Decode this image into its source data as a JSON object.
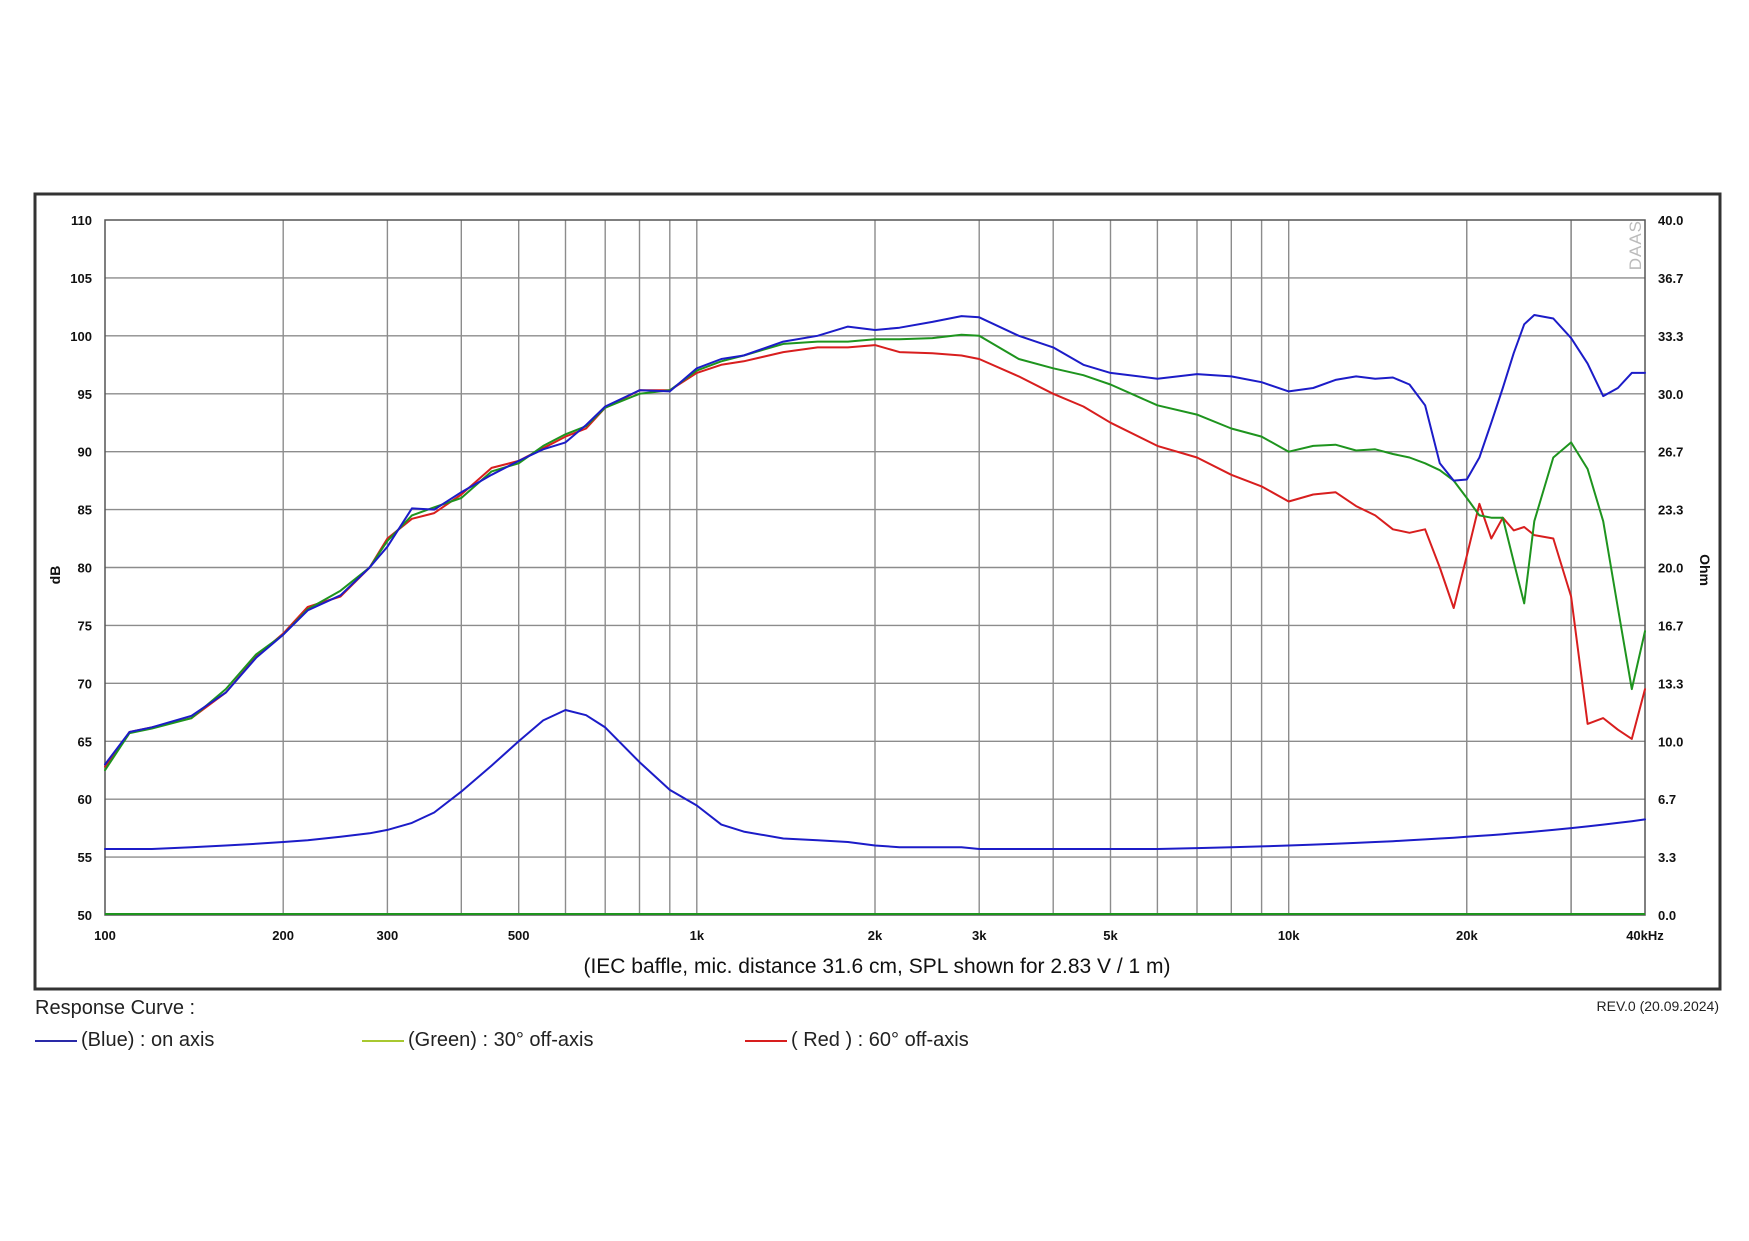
{
  "chart_data": {
    "type": "line",
    "caption": "(IEC baffle, mic. distance 31.6 cm, SPL shown for 2.83 V / 1 m)",
    "xlabel": "",
    "ylabel": "dB",
    "y2label": "Ohm",
    "watermark": "DAAS",
    "xscale": "log",
    "xlim": [
      100,
      40000
    ],
    "ylim": [
      50,
      110
    ],
    "y2lim": [
      0.0,
      40.0
    ],
    "grid": true,
    "x_ticks": [
      {
        "value": 100,
        "label": "100"
      },
      {
        "value": 200,
        "label": "200"
      },
      {
        "value": 300,
        "label": "300"
      },
      {
        "value": 500,
        "label": "500"
      },
      {
        "value": 1000,
        "label": "1k"
      },
      {
        "value": 2000,
        "label": "2k"
      },
      {
        "value": 3000,
        "label": "3k"
      },
      {
        "value": 5000,
        "label": "5k"
      },
      {
        "value": 10000,
        "label": "10k"
      },
      {
        "value": 20000,
        "label": "20k"
      },
      {
        "value": 40000,
        "label": "40kHz"
      }
    ],
    "y_ticks": [
      "110",
      "105",
      "100",
      "95",
      "90",
      "85",
      "80",
      "75",
      "70",
      "65",
      "60",
      "55",
      "50"
    ],
    "y2_ticks": [
      "40.0",
      "36.7",
      "33.3",
      "30.0",
      "26.7",
      "23.3",
      "20.0",
      "16.7",
      "13.3",
      "10.0",
      "6.7",
      "3.3",
      "0.0"
    ],
    "x": [
      100,
      110,
      120,
      140,
      160,
      180,
      200,
      220,
      250,
      280,
      300,
      330,
      360,
      400,
      450,
      500,
      550,
      600,
      650,
      700,
      800,
      900,
      1000,
      1100,
      1200,
      1400,
      1600,
      1800,
      2000,
      2200,
      2500,
      2800,
      3000,
      3500,
      4000,
      4500,
      5000,
      6000,
      7000,
      8000,
      9000,
      10000,
      11000,
      12000,
      13000,
      14000,
      15000,
      16000,
      17000,
      18000,
      19000,
      20000,
      21000,
      22000,
      23000,
      24000,
      25000,
      26000,
      28000,
      30000,
      32000,
      34000,
      36000,
      38000,
      40000
    ],
    "series": [
      {
        "name": "on axis",
        "color": "#1c1cc8",
        "values": [
          63,
          65.8,
          66.2,
          67.2,
          69.2,
          72.2,
          74.2,
          76.3,
          77.6,
          80.0,
          81.8,
          85.1,
          85.0,
          86.5,
          88.0,
          89.2,
          90.2,
          90.8,
          92.3,
          93.9,
          95.3,
          95.2,
          97.2,
          98.0,
          98.3,
          99.5,
          100.0,
          100.8,
          100.5,
          100.7,
          101.2,
          101.7,
          101.6,
          100.0,
          99.0,
          97.5,
          96.8,
          96.3,
          96.7,
          96.5,
          96.0,
          95.2,
          95.5,
          96.2,
          96.5,
          96.3,
          96.4,
          95.8,
          94.0,
          89.0,
          87.5,
          87.6,
          89.5,
          92.5,
          95.5,
          98.5,
          101.0,
          101.8,
          101.5,
          99.8,
          97.6,
          94.8,
          95.5,
          96.8,
          96.8
        ]
      },
      {
        "name": "(Green) : 30° off-axis",
        "color": "#1e941e",
        "values": [
          62.5,
          65.7,
          66.1,
          67.0,
          69.5,
          72.5,
          74.2,
          76.4,
          78.0,
          80.0,
          82.3,
          84.5,
          85.2,
          86.0,
          88.3,
          89.0,
          90.5,
          91.5,
          92.2,
          93.8,
          95.0,
          95.3,
          97.0,
          97.8,
          98.3,
          99.3,
          99.5,
          99.5,
          99.7,
          99.7,
          99.8,
          100.1,
          100.0,
          98.0,
          97.2,
          96.6,
          95.8,
          94.0,
          93.2,
          92.0,
          91.3,
          90.0,
          90.5,
          90.6,
          90.1,
          90.2,
          89.8,
          89.5,
          89.0,
          88.4,
          87.5,
          86.0,
          84.5,
          84.3,
          84.3,
          80.5,
          76.9,
          84.0,
          89.5,
          90.8,
          88.5,
          84.0,
          76.5,
          69.5,
          74.5
        ]
      },
      {
        "name": "( Red ) : 60° off-axis",
        "color": "#d81e1e",
        "values": [
          62.8,
          65.8,
          66.2,
          67.0,
          69.2,
          72.3,
          74.3,
          76.6,
          77.5,
          80.0,
          82.5,
          84.2,
          84.7,
          86.3,
          88.6,
          89.2,
          90.3,
          91.3,
          92.0,
          93.8,
          95.3,
          95.3,
          96.8,
          97.5,
          97.8,
          98.6,
          99.0,
          99.0,
          99.2,
          98.6,
          98.5,
          98.3,
          98.0,
          96.5,
          95.0,
          93.9,
          92.5,
          90.5,
          89.5,
          88.0,
          87.0,
          85.7,
          86.3,
          86.5,
          85.3,
          84.5,
          83.3,
          83.0,
          83.3,
          80.0,
          76.5,
          81.0,
          85.5,
          82.5,
          84.3,
          83.2,
          83.5,
          82.8,
          82.5,
          77.5,
          66.5,
          67.0,
          66.0,
          65.2,
          69.5
        ]
      },
      {
        "name": "impedance (Ohm)",
        "axis": "right",
        "color": "#1c1cc8",
        "values": [
          3.8,
          3.8,
          3.8,
          3.9,
          4.0,
          4.1,
          4.2,
          4.3,
          4.5,
          4.7,
          4.9,
          5.3,
          5.9,
          7.1,
          8.6,
          10.0,
          11.2,
          11.8,
          11.5,
          10.8,
          8.8,
          7.2,
          6.3,
          5.2,
          4.8,
          4.4,
          4.3,
          4.2,
          4.0,
          3.9,
          3.9,
          3.9,
          3.8,
          3.8,
          3.8,
          3.8,
          3.8,
          3.8,
          3.85,
          3.9,
          3.95,
          4.0,
          4.05,
          4.1,
          4.15,
          4.2,
          4.25,
          4.3,
          4.35,
          4.4,
          4.45,
          4.5,
          4.55,
          4.6,
          4.65,
          4.7,
          4.75,
          4.8,
          4.9,
          5.0,
          5.1,
          5.2,
          5.3,
          5.4,
          5.5
        ]
      }
    ],
    "legend": {
      "title": "Response Curve :",
      "placement": "bottom-left",
      "items": [
        {
          "label": "(Blue)  : on axis",
          "color": "#2a2aa8"
        },
        {
          "label": "(Green) : 30° off-axis",
          "color": "#a8c830"
        },
        {
          "label": "( Red ) : 60° off-axis",
          "color": "#d81e1e"
        }
      ]
    }
  },
  "footer": {
    "revision": "REV.0 (20.09.2024)"
  }
}
